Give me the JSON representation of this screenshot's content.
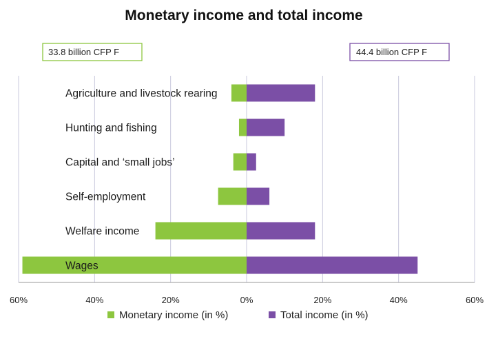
{
  "chart_data": {
    "type": "bar",
    "orientation": "horizontal-diverging",
    "title": "Monetary income and total income",
    "categories": [
      "Agriculture and livestock rearing",
      "Hunting and fishing",
      "Capital and ‘small jobs’",
      "Self-employment",
      "Welfare income",
      "Wages"
    ],
    "series": [
      {
        "name": "Monetary income (in %)",
        "color": "#8dc63f",
        "direction": "left",
        "values": [
          4,
          2,
          3.5,
          7.5,
          24,
          59
        ]
      },
      {
        "name": "Total income (in %)",
        "color": "#7b4fa6",
        "direction": "right",
        "values": [
          18,
          10,
          2.5,
          6,
          18,
          45
        ]
      }
    ],
    "annotations": [
      {
        "text": "33.8 billion CFP F",
        "side": "left",
        "color": "#8dc63f"
      },
      {
        "text": "44.4 billion CFP F",
        "side": "right",
        "color": "#7b4fa6"
      }
    ],
    "xlim": [
      -60,
      60
    ],
    "xticks": [
      -60,
      -40,
      -20,
      0,
      20,
      40,
      60
    ],
    "xtick_labels": [
      "60%",
      "40%",
      "20%",
      "0%",
      "20%",
      "40%",
      "60%"
    ],
    "grid": "vertical",
    "gridline_color": "#c8c8dc",
    "legend_position": "bottom"
  }
}
